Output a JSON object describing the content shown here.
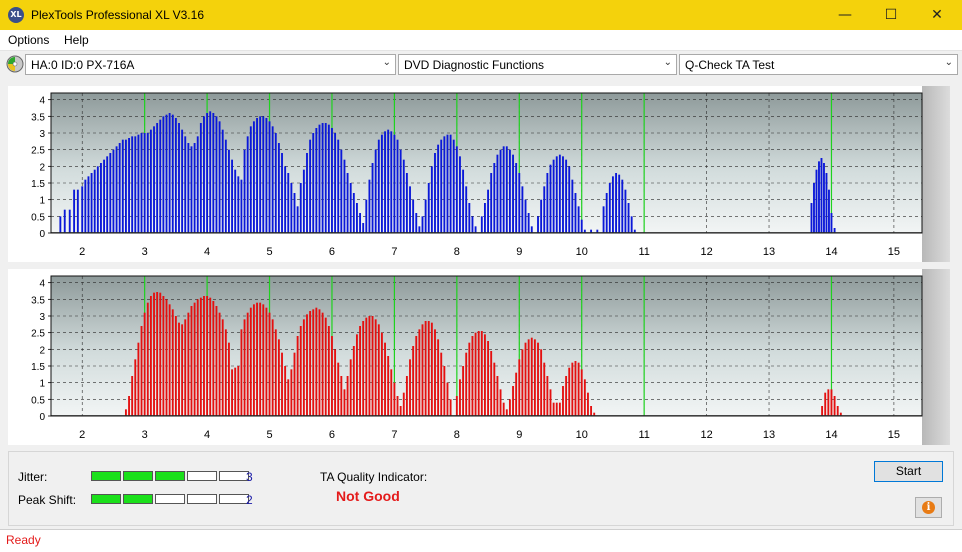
{
  "window": {
    "title": "PlexTools Professional XL V3.16",
    "icon_label": "XL",
    "buttons": {
      "minimize": "—",
      "maximize": "☐",
      "close": "✕"
    }
  },
  "menu": {
    "items": [
      "Options",
      "Help"
    ]
  },
  "toolbar": {
    "drive": "HA:0 ID:0  PX-716A",
    "function": "DVD Diagnostic Functions",
    "test": "Q-Check TA Test"
  },
  "charts": {
    "x_ticks": [
      2,
      3,
      4,
      5,
      6,
      7,
      8,
      9,
      10,
      11,
      12,
      13,
      14,
      15
    ],
    "y_ticks": [
      "0",
      "0.5",
      "1",
      "1.5",
      "2",
      "2.5",
      "3",
      "3.5",
      "4"
    ],
    "green_lines": [
      3,
      4,
      5,
      6,
      7,
      8,
      9,
      10,
      11,
      14
    ],
    "bar_colors": {
      "top": "#0b18d8",
      "bottom": "#e41010"
    }
  },
  "chart_data": [
    {
      "type": "bar",
      "name": "top",
      "xlim": [
        1.5,
        15.45
      ],
      "ylim": [
        0,
        4.2
      ],
      "bins": [
        [
          1.65,
          0.5
        ],
        [
          1.72,
          0.7
        ],
        [
          1.8,
          0.7
        ],
        [
          1.87,
          1.3
        ],
        [
          1.93,
          1.3
        ],
        [
          2.0,
          1.4
        ],
        [
          2.05,
          1.6
        ],
        [
          2.1,
          1.7
        ],
        [
          2.15,
          1.8
        ],
        [
          2.2,
          1.9
        ],
        [
          2.25,
          2.0
        ],
        [
          2.3,
          2.1
        ],
        [
          2.35,
          2.2
        ],
        [
          2.4,
          2.3
        ],
        [
          2.45,
          2.4
        ],
        [
          2.5,
          2.5
        ],
        [
          2.55,
          2.6
        ],
        [
          2.6,
          2.7
        ],
        [
          2.65,
          2.8
        ],
        [
          2.7,
          2.8
        ],
        [
          2.75,
          2.85
        ],
        [
          2.8,
          2.9
        ],
        [
          2.85,
          2.9
        ],
        [
          2.9,
          2.95
        ],
        [
          2.95,
          3.0
        ],
        [
          3.0,
          3.0
        ],
        [
          3.05,
          3.0
        ],
        [
          3.1,
          3.1
        ],
        [
          3.15,
          3.2
        ],
        [
          3.2,
          3.3
        ],
        [
          3.25,
          3.4
        ],
        [
          3.3,
          3.5
        ],
        [
          3.35,
          3.55
        ],
        [
          3.4,
          3.6
        ],
        [
          3.45,
          3.55
        ],
        [
          3.5,
          3.45
        ],
        [
          3.55,
          3.3
        ],
        [
          3.6,
          3.1
        ],
        [
          3.65,
          2.9
        ],
        [
          3.7,
          2.7
        ],
        [
          3.75,
          2.6
        ],
        [
          3.8,
          2.7
        ],
        [
          3.85,
          2.9
        ],
        [
          3.9,
          3.3
        ],
        [
          3.95,
          3.5
        ],
        [
          4.0,
          3.6
        ],
        [
          4.05,
          3.65
        ],
        [
          4.1,
          3.6
        ],
        [
          4.15,
          3.5
        ],
        [
          4.2,
          3.35
        ],
        [
          4.25,
          3.1
        ],
        [
          4.3,
          2.8
        ],
        [
          4.35,
          2.5
        ],
        [
          4.4,
          2.2
        ],
        [
          4.45,
          1.9
        ],
        [
          4.5,
          1.7
        ],
        [
          4.55,
          1.6
        ],
        [
          4.6,
          2.5
        ],
        [
          4.65,
          2.9
        ],
        [
          4.7,
          3.2
        ],
        [
          4.75,
          3.35
        ],
        [
          4.8,
          3.45
        ],
        [
          4.85,
          3.5
        ],
        [
          4.9,
          3.5
        ],
        [
          4.95,
          3.45
        ],
        [
          5.0,
          3.35
        ],
        [
          5.05,
          3.2
        ],
        [
          5.1,
          3.0
        ],
        [
          5.15,
          2.7
        ],
        [
          5.2,
          2.4
        ],
        [
          5.25,
          2.0
        ],
        [
          5.3,
          1.8
        ],
        [
          5.35,
          1.5
        ],
        [
          5.4,
          1.2
        ],
        [
          5.45,
          0.8
        ],
        [
          5.5,
          1.5
        ],
        [
          5.55,
          1.9
        ],
        [
          5.6,
          2.4
        ],
        [
          5.65,
          2.8
        ],
        [
          5.7,
          3.0
        ],
        [
          5.75,
          3.15
        ],
        [
          5.8,
          3.25
        ],
        [
          5.85,
          3.3
        ],
        [
          5.9,
          3.3
        ],
        [
          5.95,
          3.25
        ],
        [
          6.0,
          3.15
        ],
        [
          6.05,
          3.0
        ],
        [
          6.1,
          2.8
        ],
        [
          6.15,
          2.5
        ],
        [
          6.2,
          2.2
        ],
        [
          6.25,
          1.8
        ],
        [
          6.3,
          1.5
        ],
        [
          6.35,
          1.2
        ],
        [
          6.4,
          0.9
        ],
        [
          6.45,
          0.6
        ],
        [
          6.5,
          0.3
        ],
        [
          6.55,
          1.0
        ],
        [
          6.6,
          1.6
        ],
        [
          6.65,
          2.1
        ],
        [
          6.7,
          2.5
        ],
        [
          6.75,
          2.8
        ],
        [
          6.8,
          2.95
        ],
        [
          6.85,
          3.05
        ],
        [
          6.9,
          3.1
        ],
        [
          6.95,
          3.05
        ],
        [
          7.0,
          2.95
        ],
        [
          7.05,
          2.8
        ],
        [
          7.1,
          2.5
        ],
        [
          7.15,
          2.2
        ],
        [
          7.2,
          1.8
        ],
        [
          7.25,
          1.4
        ],
        [
          7.3,
          1.0
        ],
        [
          7.35,
          0.6
        ],
        [
          7.4,
          0.2
        ],
        [
          7.45,
          0.5
        ],
        [
          7.5,
          1.0
        ],
        [
          7.55,
          1.5
        ],
        [
          7.6,
          2.0
        ],
        [
          7.65,
          2.4
        ],
        [
          7.7,
          2.65
        ],
        [
          7.75,
          2.8
        ],
        [
          7.8,
          2.9
        ],
        [
          7.85,
          2.95
        ],
        [
          7.9,
          2.95
        ],
        [
          7.95,
          2.8
        ],
        [
          8.0,
          2.6
        ],
        [
          8.05,
          2.3
        ],
        [
          8.1,
          1.9
        ],
        [
          8.15,
          1.4
        ],
        [
          8.2,
          0.9
        ],
        [
          8.25,
          0.5
        ],
        [
          8.3,
          0.2
        ],
        [
          8.4,
          0.5
        ],
        [
          8.45,
          0.9
        ],
        [
          8.5,
          1.3
        ],
        [
          8.55,
          1.8
        ],
        [
          8.6,
          2.1
        ],
        [
          8.65,
          2.35
        ],
        [
          8.7,
          2.5
        ],
        [
          8.75,
          2.6
        ],
        [
          8.8,
          2.6
        ],
        [
          8.85,
          2.5
        ],
        [
          8.9,
          2.35
        ],
        [
          8.95,
          2.1
        ],
        [
          9.0,
          1.8
        ],
        [
          9.05,
          1.4
        ],
        [
          9.1,
          1.0
        ],
        [
          9.15,
          0.6
        ],
        [
          9.2,
          0.2
        ],
        [
          9.3,
          0.5
        ],
        [
          9.35,
          1.0
        ],
        [
          9.4,
          1.4
        ],
        [
          9.45,
          1.8
        ],
        [
          9.5,
          2.05
        ],
        [
          9.55,
          2.2
        ],
        [
          9.6,
          2.3
        ],
        [
          9.65,
          2.35
        ],
        [
          9.7,
          2.3
        ],
        [
          9.75,
          2.2
        ],
        [
          9.8,
          2.0
        ],
        [
          9.85,
          1.6
        ],
        [
          9.9,
          1.2
        ],
        [
          9.95,
          0.8
        ],
        [
          10.0,
          0.4
        ],
        [
          10.05,
          0.1
        ],
        [
          10.15,
          0.1
        ],
        [
          10.25,
          0.1
        ],
        [
          10.35,
          0.8
        ],
        [
          10.4,
          1.2
        ],
        [
          10.45,
          1.5
        ],
        [
          10.5,
          1.7
        ],
        [
          10.55,
          1.8
        ],
        [
          10.6,
          1.75
        ],
        [
          10.65,
          1.6
        ],
        [
          10.7,
          1.3
        ],
        [
          10.75,
          0.9
        ],
        [
          10.8,
          0.5
        ],
        [
          10.85,
          0.1
        ],
        [
          13.68,
          0.9
        ],
        [
          13.72,
          1.5
        ],
        [
          13.76,
          1.9
        ],
        [
          13.8,
          2.15
        ],
        [
          13.84,
          2.25
        ],
        [
          13.88,
          2.1
        ],
        [
          13.92,
          1.8
        ],
        [
          13.96,
          1.3
        ],
        [
          14.0,
          0.6
        ],
        [
          14.05,
          0.15
        ]
      ]
    },
    {
      "type": "bar",
      "name": "bottom",
      "xlim": [
        1.5,
        15.45
      ],
      "ylim": [
        0,
        4.2
      ],
      "bins": [
        [
          2.7,
          0.2
        ],
        [
          2.75,
          0.6
        ],
        [
          2.8,
          1.2
        ],
        [
          2.85,
          1.7
        ],
        [
          2.9,
          2.2
        ],
        [
          2.95,
          2.7
        ],
        [
          3.0,
          3.1
        ],
        [
          3.05,
          3.4
        ],
        [
          3.1,
          3.6
        ],
        [
          3.15,
          3.7
        ],
        [
          3.2,
          3.72
        ],
        [
          3.25,
          3.7
        ],
        [
          3.3,
          3.6
        ],
        [
          3.35,
          3.5
        ],
        [
          3.4,
          3.35
        ],
        [
          3.45,
          3.2
        ],
        [
          3.5,
          3.0
        ],
        [
          3.55,
          2.8
        ],
        [
          3.6,
          2.75
        ],
        [
          3.65,
          2.9
        ],
        [
          3.7,
          3.1
        ],
        [
          3.75,
          3.3
        ],
        [
          3.8,
          3.4
        ],
        [
          3.85,
          3.5
        ],
        [
          3.9,
          3.55
        ],
        [
          3.95,
          3.6
        ],
        [
          4.0,
          3.6
        ],
        [
          4.05,
          3.55
        ],
        [
          4.1,
          3.45
        ],
        [
          4.15,
          3.3
        ],
        [
          4.2,
          3.1
        ],
        [
          4.25,
          2.9
        ],
        [
          4.3,
          2.6
        ],
        [
          4.35,
          2.2
        ],
        [
          4.4,
          1.4
        ],
        [
          4.45,
          1.45
        ],
        [
          4.5,
          1.5
        ],
        [
          4.55,
          2.6
        ],
        [
          4.6,
          2.9
        ],
        [
          4.65,
          3.1
        ],
        [
          4.7,
          3.25
        ],
        [
          4.75,
          3.35
        ],
        [
          4.8,
          3.4
        ],
        [
          4.85,
          3.4
        ],
        [
          4.9,
          3.35
        ],
        [
          4.95,
          3.25
        ],
        [
          5.0,
          3.1
        ],
        [
          5.05,
          2.9
        ],
        [
          5.1,
          2.6
        ],
        [
          5.15,
          2.3
        ],
        [
          5.2,
          1.9
        ],
        [
          5.25,
          1.5
        ],
        [
          5.3,
          1.1
        ],
        [
          5.35,
          1.4
        ],
        [
          5.4,
          1.9
        ],
        [
          5.45,
          2.4
        ],
        [
          5.5,
          2.7
        ],
        [
          5.55,
          2.9
        ],
        [
          5.6,
          3.05
        ],
        [
          5.65,
          3.15
        ],
        [
          5.7,
          3.2
        ],
        [
          5.75,
          3.25
        ],
        [
          5.8,
          3.2
        ],
        [
          5.85,
          3.1
        ],
        [
          5.9,
          2.95
        ],
        [
          5.95,
          2.7
        ],
        [
          6.0,
          2.4
        ],
        [
          6.05,
          2.0
        ],
        [
          6.1,
          1.6
        ],
        [
          6.15,
          1.2
        ],
        [
          6.2,
          0.8
        ],
        [
          6.25,
          1.2
        ],
        [
          6.3,
          1.7
        ],
        [
          6.35,
          2.1
        ],
        [
          6.4,
          2.45
        ],
        [
          6.45,
          2.7
        ],
        [
          6.5,
          2.85
        ],
        [
          6.55,
          2.95
        ],
        [
          6.6,
          3.0
        ],
        [
          6.65,
          3.0
        ],
        [
          6.7,
          2.9
        ],
        [
          6.75,
          2.75
        ],
        [
          6.8,
          2.5
        ],
        [
          6.85,
          2.2
        ],
        [
          6.9,
          1.8
        ],
        [
          6.95,
          1.4
        ],
        [
          7.0,
          1.0
        ],
        [
          7.05,
          0.6
        ],
        [
          7.1,
          0.3
        ],
        [
          7.15,
          0.7
        ],
        [
          7.2,
          1.2
        ],
        [
          7.25,
          1.7
        ],
        [
          7.3,
          2.1
        ],
        [
          7.35,
          2.4
        ],
        [
          7.4,
          2.6
        ],
        [
          7.45,
          2.75
        ],
        [
          7.5,
          2.85
        ],
        [
          7.55,
          2.85
        ],
        [
          7.6,
          2.8
        ],
        [
          7.65,
          2.6
        ],
        [
          7.7,
          2.3
        ],
        [
          7.75,
          1.9
        ],
        [
          7.8,
          1.5
        ],
        [
          7.85,
          1.0
        ],
        [
          7.9,
          0.5
        ],
        [
          8.0,
          0.6
        ],
        [
          8.05,
          1.1
        ],
        [
          8.1,
          1.5
        ],
        [
          8.15,
          1.9
        ],
        [
          8.2,
          2.2
        ],
        [
          8.25,
          2.4
        ],
        [
          8.3,
          2.5
        ],
        [
          8.35,
          2.55
        ],
        [
          8.4,
          2.55
        ],
        [
          8.45,
          2.45
        ],
        [
          8.5,
          2.25
        ],
        [
          8.55,
          1.95
        ],
        [
          8.6,
          1.6
        ],
        [
          8.65,
          1.2
        ],
        [
          8.7,
          0.8
        ],
        [
          8.75,
          0.4
        ],
        [
          8.8,
          0.2
        ],
        [
          8.85,
          0.5
        ],
        [
          8.9,
          0.9
        ],
        [
          8.95,
          1.3
        ],
        [
          9.0,
          1.7
        ],
        [
          9.05,
          2.0
        ],
        [
          9.1,
          2.2
        ],
        [
          9.15,
          2.3
        ],
        [
          9.2,
          2.35
        ],
        [
          9.25,
          2.3
        ],
        [
          9.3,
          2.2
        ],
        [
          9.35,
          2.0
        ],
        [
          9.4,
          1.6
        ],
        [
          9.45,
          1.2
        ],
        [
          9.5,
          0.8
        ],
        [
          9.55,
          0.4
        ],
        [
          9.6,
          0.4
        ],
        [
          9.65,
          0.4
        ],
        [
          9.7,
          0.9
        ],
        [
          9.75,
          1.2
        ],
        [
          9.8,
          1.45
        ],
        [
          9.85,
          1.6
        ],
        [
          9.9,
          1.65
        ],
        [
          9.95,
          1.6
        ],
        [
          10.0,
          1.4
        ],
        [
          10.05,
          1.1
        ],
        [
          10.1,
          0.7
        ],
        [
          10.15,
          0.3
        ],
        [
          10.2,
          0.1
        ],
        [
          13.85,
          0.3
        ],
        [
          13.9,
          0.7
        ],
        [
          13.95,
          0.8
        ],
        [
          14.0,
          0.8
        ],
        [
          14.05,
          0.6
        ],
        [
          14.1,
          0.3
        ],
        [
          14.15,
          0.1
        ]
      ]
    }
  ],
  "info": {
    "jitter_label": "Jitter:",
    "jitter_level": 3,
    "jitter_value": "3",
    "peak_label": "Peak Shift:",
    "peak_level": 2,
    "peak_value": "2",
    "meter_segments": 5,
    "quality_label": "TA Quality Indicator:",
    "quality_value": "Not Good"
  },
  "buttons": {
    "start": "Start",
    "info_glyph": "i"
  },
  "status": {
    "text": "Ready"
  }
}
